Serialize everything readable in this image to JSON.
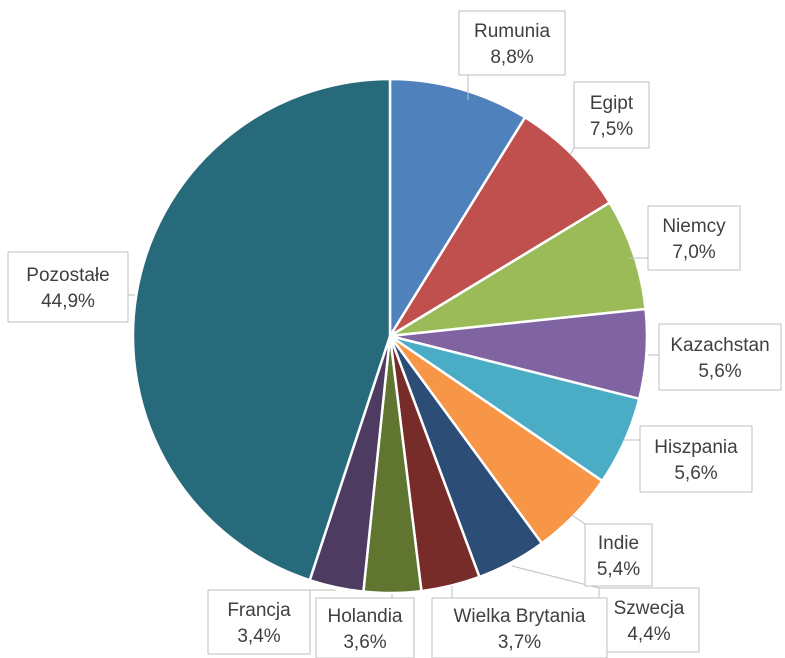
{
  "chart_data": {
    "type": "pie",
    "slices": [
      {
        "label": "Rumunia",
        "value": 8.8,
        "value_label": "8,8%",
        "color": "#4f81bd"
      },
      {
        "label": "Egipt",
        "value": 7.5,
        "value_label": "7,5%",
        "color": "#c0504d"
      },
      {
        "label": "Niemcy",
        "value": 7.0,
        "value_label": "7,0%",
        "color": "#9bbb59"
      },
      {
        "label": "Kazachstan",
        "value": 5.6,
        "value_label": "5,6%",
        "color": "#8064a2"
      },
      {
        "label": "Hiszpania",
        "value": 5.6,
        "value_label": "5,6%",
        "color": "#4bacc6"
      },
      {
        "label": "Indie",
        "value": 5.4,
        "value_label": "5,4%",
        "color": "#f79646"
      },
      {
        "label": "Szwecja",
        "value": 4.4,
        "value_label": "4,4%",
        "color": "#2c4d75"
      },
      {
        "label": "Wielka Brytania",
        "value": 3.7,
        "value_label": "3,7%",
        "color": "#772c2a"
      },
      {
        "label": "Holandia",
        "value": 3.6,
        "value_label": "3,6%",
        "color": "#5f7530"
      },
      {
        "label": "Francja",
        "value": 3.4,
        "value_label": "3,4%",
        "color": "#4d3b62"
      },
      {
        "label": "Pozostałe",
        "value": 44.9,
        "value_label": "44,9%",
        "color": "#276a7c"
      }
    ]
  }
}
